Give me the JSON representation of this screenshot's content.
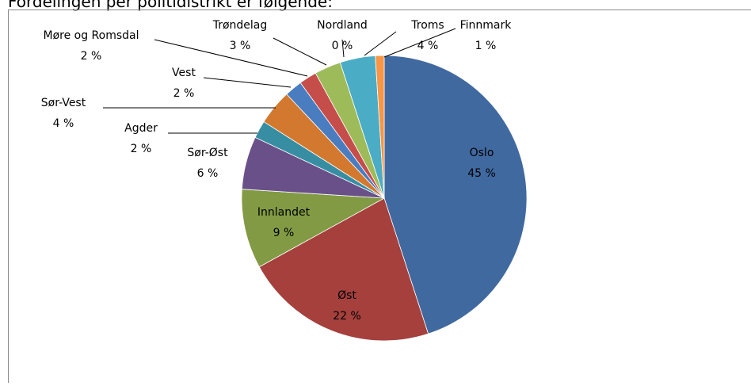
{
  "heading": "Fordelingen per politidistrikt er følgende:",
  "chart_data": {
    "type": "pie",
    "categories": [
      "Oslo",
      "Øst",
      "Innlandet",
      "Sør-Øst",
      "Agder",
      "Sør-Vest",
      "Vest",
      "Møre og Romsdal",
      "Trøndelag",
      "Nordland",
      "Troms",
      "Finnmark"
    ],
    "values": [
      45,
      22,
      9,
      6,
      2,
      4,
      2,
      2,
      3,
      0,
      4,
      1
    ],
    "value_labels": [
      "45 %",
      "22 %",
      "9 %",
      "6 %",
      "2 %",
      "4 %",
      "2 %",
      "2 %",
      "3 %",
      "0 %",
      "4 %",
      "1 %"
    ],
    "colors": [
      "#4069a0",
      "#a5403d",
      "#829a44",
      "#6a5088",
      "#378ea3",
      "#d2792f",
      "#4a7cc0",
      "#c54d4a",
      "#9dbb59",
      "#7d62a1",
      "#4bacc6",
      "#f79646"
    ]
  }
}
